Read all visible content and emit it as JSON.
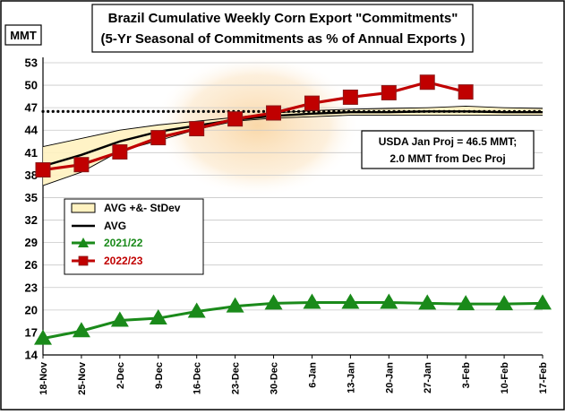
{
  "chart_data": {
    "type": "line",
    "title": "Brazil Cumulative Weekly Corn Export \"Commitments\"",
    "subtitle": "(5-Yr Seasonal of Commitments as % of Annual Exports )",
    "ylabel": "MMT",
    "ylim": [
      14,
      53
    ],
    "yticks": [
      14,
      17,
      20,
      23,
      26,
      29,
      32,
      35,
      38,
      41,
      44,
      47,
      50,
      53
    ],
    "categories": [
      "18-Nov",
      "25-Nov",
      "2-Dec",
      "9-Dec",
      "16-Dec",
      "23-Dec",
      "30-Dec",
      "6-Jan",
      "13-Jan",
      "20-Jan",
      "27-Jan",
      "3-Feb",
      "10-Feb",
      "17-Feb"
    ],
    "grid": true,
    "band": {
      "name": "AVG +&- StDev",
      "lower": [
        36.6,
        38.4,
        41.2,
        42.6,
        44.1,
        45.2,
        45.6,
        45.8,
        46.0,
        46.0,
        46.0,
        46.0,
        46.0,
        46.0
      ],
      "upper": [
        41.8,
        42.9,
        44.0,
        44.7,
        45.2,
        45.7,
        46.3,
        46.6,
        46.8,
        46.9,
        47.0,
        47.2,
        47.0,
        46.9
      ]
    },
    "series": [
      {
        "name": "AVG",
        "values": [
          39.2,
          40.7,
          42.5,
          43.8,
          44.6,
          45.4,
          45.9,
          46.2,
          46.4,
          46.4,
          46.5,
          46.5,
          46.4,
          46.4
        ]
      },
      {
        "name": "2021/22",
        "values": [
          16.2,
          17.2,
          18.6,
          18.9,
          19.8,
          20.5,
          20.9,
          21.0,
          21.0,
          21.0,
          20.9,
          20.8,
          20.8,
          20.9
        ]
      },
      {
        "name": "2022/23",
        "values": [
          38.7,
          39.4,
          41.1,
          43.0,
          44.2,
          45.5,
          46.3,
          47.6,
          48.4,
          49.0,
          50.4,
          49.1,
          null,
          null
        ]
      }
    ],
    "reference_line": {
      "value": 46.5
    },
    "annotation": {
      "lines": [
        "USDA Jan Proj = 46.5 MMT;",
        "2.0 MMT from Dec Proj"
      ],
      "position": "right"
    },
    "legend": {
      "position": "middle-left"
    },
    "colors": {
      "band_fill": "#fff2c0",
      "avg": "#000000",
      "s2122": "#1a8a1a",
      "s2223_line": "#c00000",
      "s2223_marker": "#c00000",
      "s2223_marker_edge": "#8b1a1a",
      "background_glow": "#fbd9a4",
      "legend_2122_text": "#1a8a1a",
      "legend_2223_text": "#c00000"
    }
  }
}
